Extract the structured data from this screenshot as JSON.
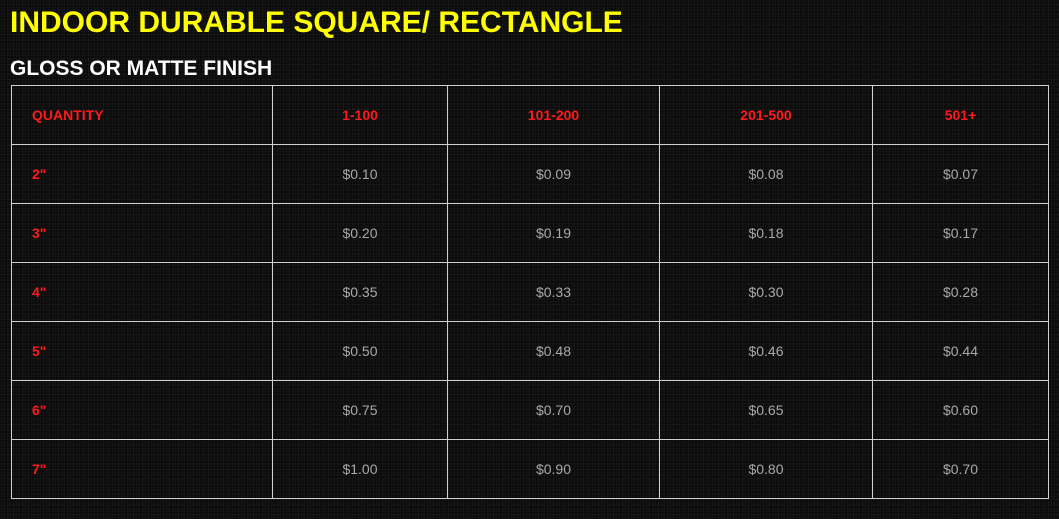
{
  "title": "INDOOR DURABLE SQUARE/ RECTANGLE",
  "subtitle": "GLOSS OR MATTE FINISH",
  "colors": {
    "title": "#ffff00",
    "subtitle": "#ffffff",
    "header_text": "#ff1a1a",
    "size_text": "#ff1a1a",
    "price_text": "#a8a8a8",
    "grid": "#d0d0d0",
    "background": "#0b0b0b"
  },
  "table": {
    "headers": [
      "QUANTITY",
      "1-100",
      "101-200",
      "201-500",
      "501+"
    ],
    "rows": [
      {
        "size": "2\"",
        "prices": [
          "$0.10",
          "$0.09",
          "$0.08",
          "$0.07"
        ]
      },
      {
        "size": "3\"",
        "prices": [
          "$0.20",
          "$0.19",
          "$0.18",
          "$0.17"
        ]
      },
      {
        "size": "4\"",
        "prices": [
          "$0.35",
          "$0.33",
          "$0.30",
          "$0.28"
        ]
      },
      {
        "size": "5\"",
        "prices": [
          "$0.50",
          "$0.48",
          "$0.46",
          "$0.44"
        ]
      },
      {
        "size": "6\"",
        "prices": [
          "$0.75",
          "$0.70",
          "$0.65",
          "$0.60"
        ]
      },
      {
        "size": "7\"",
        "prices": [
          "$1.00",
          "$0.90",
          "$0.80",
          "$0.70"
        ]
      }
    ]
  }
}
